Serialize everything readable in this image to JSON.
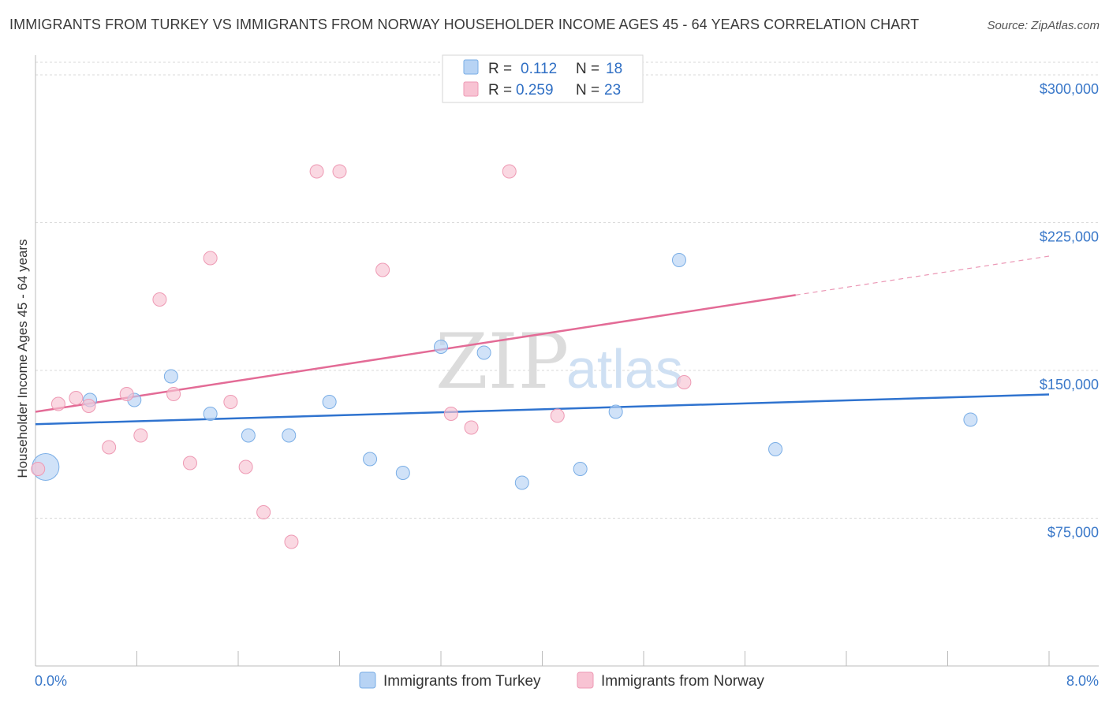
{
  "title": "IMMIGRANTS FROM TURKEY VS IMMIGRANTS FROM NORWAY HOUSEHOLDER INCOME AGES 45 - 64 YEARS CORRELATION CHART",
  "source": "Source: ZipAtlas.com",
  "watermark": {
    "zip": "ZIP",
    "atlas": "atlas"
  },
  "legend": {
    "r_label": "R =",
    "n_label": "N =",
    "rows": [
      {
        "r": "0.112",
        "n": "18"
      },
      {
        "r": "0.259",
        "n": "23"
      }
    ]
  },
  "colors": {
    "turkey_fill": "#b7d3f4",
    "turkey_stroke": "#7aaee6",
    "turkey_line": "#2f73cf",
    "norway_fill": "#f8c3d3",
    "norway_stroke": "#ee9ab4",
    "norway_line": "#e36b96",
    "grid": "#d9d9d9",
    "tick_text": "#3a78c9"
  },
  "chart_data": {
    "type": "scatter",
    "title": "IMMIGRANTS FROM TURKEY VS IMMIGRANTS FROM NORWAY HOUSEHOLDER INCOME AGES 45 - 64 YEARS CORRELATION CHART",
    "xlabel": "",
    "ylabel": "Householder Income Ages 45 - 64 years",
    "xlim": [
      0,
      8
    ],
    "ylim": [
      0,
      310000
    ],
    "x_tick_labels": [
      "0.0%",
      "8.0%"
    ],
    "y_ticks": [
      75000,
      150000,
      225000,
      300000
    ],
    "y_tick_labels": [
      "$75,000",
      "$150,000",
      "$225,000",
      "$300,000"
    ],
    "grid": true,
    "legend_position": "top-center",
    "series": [
      {
        "name": "Immigrants from Turkey",
        "points": [
          {
            "x": 0.08,
            "y": 101000,
            "big": true
          },
          {
            "x": 0.43,
            "y": 135000
          },
          {
            "x": 0.78,
            "y": 135000
          },
          {
            "x": 1.07,
            "y": 147000
          },
          {
            "x": 1.38,
            "y": 128000
          },
          {
            "x": 1.68,
            "y": 117000
          },
          {
            "x": 2.0,
            "y": 117000
          },
          {
            "x": 2.32,
            "y": 134000
          },
          {
            "x": 2.64,
            "y": 105000
          },
          {
            "x": 2.9,
            "y": 98000
          },
          {
            "x": 3.2,
            "y": 162000
          },
          {
            "x": 3.54,
            "y": 159000
          },
          {
            "x": 3.84,
            "y": 93000
          },
          {
            "x": 4.3,
            "y": 100000
          },
          {
            "x": 4.58,
            "y": 129000
          },
          {
            "x": 5.08,
            "y": 206000
          },
          {
            "x": 5.84,
            "y": 110000
          },
          {
            "x": 7.38,
            "y": 125000
          }
        ],
        "trend": {
          "x": [
            0,
            8
          ],
          "y": [
            122700,
            137800
          ],
          "solid_to": 8
        }
      },
      {
        "name": "Immigrants from Norway",
        "points": [
          {
            "x": 0.02,
            "y": 100000
          },
          {
            "x": 0.18,
            "y": 133000
          },
          {
            "x": 0.32,
            "y": 136000
          },
          {
            "x": 0.42,
            "y": 132000
          },
          {
            "x": 0.58,
            "y": 111000
          },
          {
            "x": 0.72,
            "y": 138000
          },
          {
            "x": 0.83,
            "y": 117000
          },
          {
            "x": 0.98,
            "y": 186000
          },
          {
            "x": 1.09,
            "y": 138000
          },
          {
            "x": 1.22,
            "y": 103000
          },
          {
            "x": 1.38,
            "y": 207000
          },
          {
            "x": 1.54,
            "y": 134000
          },
          {
            "x": 1.66,
            "y": 101000
          },
          {
            "x": 1.8,
            "y": 78000
          },
          {
            "x": 2.02,
            "y": 63000
          },
          {
            "x": 2.22,
            "y": 251000
          },
          {
            "x": 2.4,
            "y": 251000
          },
          {
            "x": 2.74,
            "y": 201000
          },
          {
            "x": 3.28,
            "y": 128000
          },
          {
            "x": 3.44,
            "y": 121000
          },
          {
            "x": 3.74,
            "y": 251000
          },
          {
            "x": 4.12,
            "y": 127000
          },
          {
            "x": 5.12,
            "y": 144000
          }
        ],
        "trend": {
          "x": [
            0,
            8
          ],
          "y": [
            129000,
            208000
          ],
          "solid_to": 6.0
        }
      }
    ]
  }
}
